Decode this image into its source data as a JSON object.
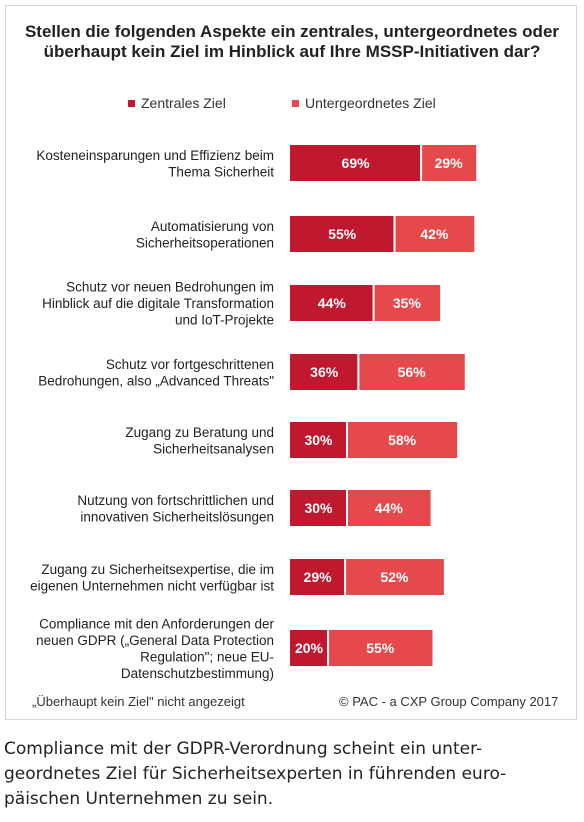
{
  "chart_data": {
    "type": "bar",
    "stacked": true,
    "orientation": "horizontal",
    "title": "Stellen die folgenden Aspekte ein zentrales, untergeordnetes oder überhaupt kein Ziel im Hinblick auf Ihre MSSP-Initiativen dar?",
    "categories": [
      "Kosteneinsparungen und Effizienz beim Thema Sicherheit",
      "Automatisierung von Sicherheitsoperationen",
      "Schutz vor neuen Bedrohungen im Hinblick auf die digitale Transformation und IoT-Projekte",
      "Schutz vor fortgeschrittenen Bedrohungen, also „Advanced Threats\"",
      "Zugang zu Beratung und Sicherheitsanalysen",
      "Nutzung von fortschrittlichen und innovativen Sicherheitslösungen",
      "Zugang zu Sicherheitsexpertise, die im eigenen Unternehmen nicht verfügbar ist",
      "Compliance mit den Anforderungen der neuen GDPR („General Data Protection Regulation\"; neue EU-Datenschutzbestimmung)"
    ],
    "category_lines": [
      [
        "Kosteneinsparungen und Effizienz beim",
        "Thema Sicherheit"
      ],
      [
        "Automatisierung von",
        "Sicherheitsoperationen"
      ],
      [
        "Schutz vor neuen Bedrohungen im",
        "Hinblick auf die digitale Transformation",
        "und IoT-Projekte"
      ],
      [
        "Schutz vor fortgeschrittenen",
        "Bedrohungen, also „Advanced Threats\""
      ],
      [
        "Zugang zu Beratung und",
        "Sicherheitsanalysen"
      ],
      [
        "Nutzung von fortschrittlichen und",
        "innovativen Sicherheitslösungen"
      ],
      [
        "Zugang zu Sicherheitsexpertise, die im",
        "eigenen Unternehmen nicht verfügbar ist"
      ],
      [
        "Compliance mit den Anforderungen der",
        "neuen GDPR („General Data Protection",
        "Regulation\"; neue EU-",
        "Datenschutzbestimmung)"
      ]
    ],
    "series": [
      {
        "name": "Zentrales Ziel",
        "color": "#c0182e",
        "values": [
          69,
          55,
          44,
          36,
          30,
          30,
          29,
          20
        ]
      },
      {
        "name": "Untergeordnetes Ziel",
        "color": "#e5494c",
        "values": [
          29,
          42,
          35,
          56,
          58,
          44,
          52,
          55
        ]
      }
    ],
    "value_suffix": "%",
    "legend_position": "top",
    "grid": false
  },
  "legend": {
    "items": [
      {
        "label": "Zentrales Ziel",
        "color": "#c0182e"
      },
      {
        "label": "Untergeordnetes Ziel",
        "color": "#e5494c"
      }
    ]
  },
  "footnote_left": "„Überhaupt kein Ziel\" nicht angezeigt",
  "footnote_right": "© PAC - a CXP Group Company 2017",
  "caption": "Compliance mit der GDPR-Verordnung scheint ein unter-\ngeordnetes Ziel für Sicherheitsexperten in führenden euro-\npäischen Unternehmen zu sein."
}
